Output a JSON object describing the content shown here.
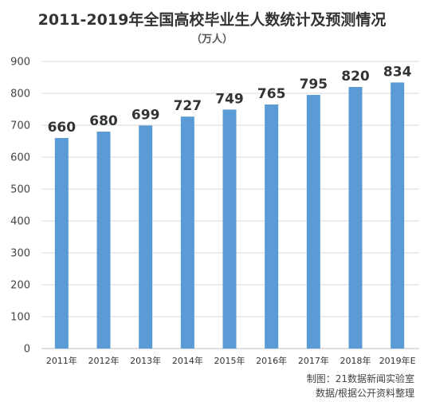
{
  "chart_data": {
    "type": "bar",
    "title": "2011-2019年全国高校毕业生人数统计及预测情况",
    "subtitle": "（万人）",
    "categories": [
      "2011年",
      "2012年",
      "2013年",
      "2014年",
      "2015年",
      "2016年",
      "2017年",
      "2018年",
      "2019年E"
    ],
    "values": [
      660,
      680,
      699,
      727,
      749,
      765,
      795,
      820,
      834
    ],
    "ylim": [
      0,
      900
    ],
    "yticks": [
      0,
      100,
      200,
      300,
      400,
      500,
      600,
      700,
      800,
      900
    ],
    "grid": true,
    "legend": "none",
    "bar_color": "#5b9bd5",
    "grid_color": "#d9d9d9"
  },
  "credits": {
    "line1": "制图：21数据新闻实验室",
    "line2": "数据/根据公开资料整理"
  }
}
